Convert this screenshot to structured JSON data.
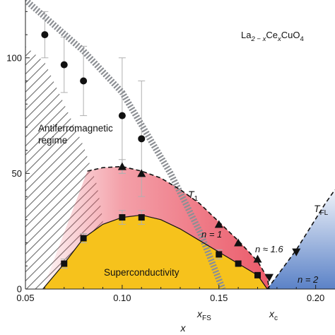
{
  "chart_data": {
    "type": "scatter",
    "compound": {
      "base": "La",
      "sub1": "2 − x",
      "mid": "Ce",
      "sub2": "x",
      "tail": "CuO",
      "sub3": "4"
    },
    "xlabel": "x",
    "xlim": [
      0.05,
      0.21
    ],
    "ylim": [
      0,
      125
    ],
    "x_ticks": [
      0.05,
      0.1,
      0.15,
      0.2
    ],
    "x_tick_labels": [
      "0.05",
      "0.10",
      "0.15",
      "0.20"
    ],
    "y_ticks": [
      0,
      50,
      100
    ],
    "y_tick_labels": [
      "0",
      "50",
      "100"
    ],
    "grid": false,
    "series": [
      {
        "marker": "circle",
        "points": [
          {
            "x": 0.06,
            "y": 110,
            "err": 10
          },
          {
            "x": 0.07,
            "y": 97,
            "err": 12
          },
          {
            "x": 0.08,
            "y": 90,
            "err": 15
          },
          {
            "x": 0.1,
            "y": 75,
            "err": 25
          },
          {
            "x": 0.11,
            "y": 65,
            "err": 25
          }
        ]
      },
      {
        "marker": "triangle-up",
        "points": [
          {
            "x": 0.1,
            "y": 53,
            "err": 3
          },
          {
            "x": 0.11,
            "y": 50,
            "err": 0
          },
          {
            "x": 0.15,
            "y": 28,
            "err": 0
          },
          {
            "x": 0.16,
            "y": 20,
            "err": 0
          },
          {
            "x": 0.17,
            "y": 13,
            "err": 0
          }
        ]
      },
      {
        "marker": "square",
        "points": [
          {
            "x": 0.07,
            "y": 11,
            "err": 2
          },
          {
            "x": 0.08,
            "y": 22,
            "err": 2
          },
          {
            "x": 0.1,
            "y": 31,
            "err": 3
          },
          {
            "x": 0.11,
            "y": 31,
            "err": 3
          },
          {
            "x": 0.15,
            "y": 15,
            "err": 2
          },
          {
            "x": 0.16,
            "y": 11,
            "err": 0
          },
          {
            "x": 0.17,
            "y": 6,
            "err": 0
          }
        ]
      },
      {
        "marker": "triangle-down",
        "points": [
          {
            "x": 0.176,
            "y": 5,
            "err": 0
          },
          {
            "x": 0.19,
            "y": 16,
            "err": 0
          }
        ]
      }
    ],
    "boundaries": {
      "sc_dome": [
        [
          0.059,
          0
        ],
        [
          0.07,
          11
        ],
        [
          0.08,
          22
        ],
        [
          0.09,
          28
        ],
        [
          0.1,
          31
        ],
        [
          0.11,
          32
        ],
        [
          0.12,
          30
        ],
        [
          0.13,
          26
        ],
        [
          0.14,
          21
        ],
        [
          0.15,
          16
        ],
        [
          0.16,
          11
        ],
        [
          0.17,
          6
        ],
        [
          0.175,
          0
        ]
      ],
      "t1_line": [
        [
          0.082,
          51
        ],
        [
          0.09,
          52.5
        ],
        [
          0.1,
          53
        ],
        [
          0.11,
          51
        ],
        [
          0.12,
          48
        ],
        [
          0.13,
          43
        ],
        [
          0.14,
          37
        ],
        [
          0.15,
          29
        ],
        [
          0.16,
          21
        ],
        [
          0.17,
          12
        ],
        [
          0.175,
          5
        ],
        [
          0.176,
          0
        ]
      ],
      "tfl_line": [
        [
          0.175,
          0
        ],
        [
          0.19,
          17
        ],
        [
          0.205,
          37
        ],
        [
          0.21,
          43
        ]
      ],
      "xfs_line": [
        [
          0.05,
          125
        ],
        [
          0.08,
          103
        ],
        [
          0.1,
          85
        ],
        [
          0.11,
          71
        ],
        [
          0.125,
          50
        ],
        [
          0.14,
          25
        ],
        [
          0.152,
          0
        ]
      ],
      "afm_edge": [
        [
          0.05,
          105
        ],
        [
          0.06,
          98
        ],
        [
          0.07,
          80
        ],
        [
          0.08,
          62
        ],
        [
          0.087,
          45
        ],
        [
          0.09,
          30
        ],
        [
          0.092,
          0
        ]
      ]
    },
    "annotations": {
      "afm_label": [
        "Antiferromagnetic",
        "regime"
      ],
      "sc_label": "Superconductivity",
      "t1": {
        "main": "T",
        "sub": "1"
      },
      "tfl": {
        "main": "T",
        "sub": "FL"
      },
      "n1": "n = 1",
      "n16": "n ≈ 1.6",
      "n2": "n = 2",
      "xfs": {
        "main": "x",
        "sub": "FS"
      },
      "xc": {
        "main": "x",
        "sub": "c"
      }
    },
    "colors": {
      "sc_fill": "#f6c21c",
      "red_fill": "#ea5262",
      "blue_fill": "#5b82c7",
      "hatch": "#6a6a6a",
      "xfs_band": "#8c8f94",
      "marker": "#111111",
      "errorbar": "#b0b0b0"
    }
  }
}
